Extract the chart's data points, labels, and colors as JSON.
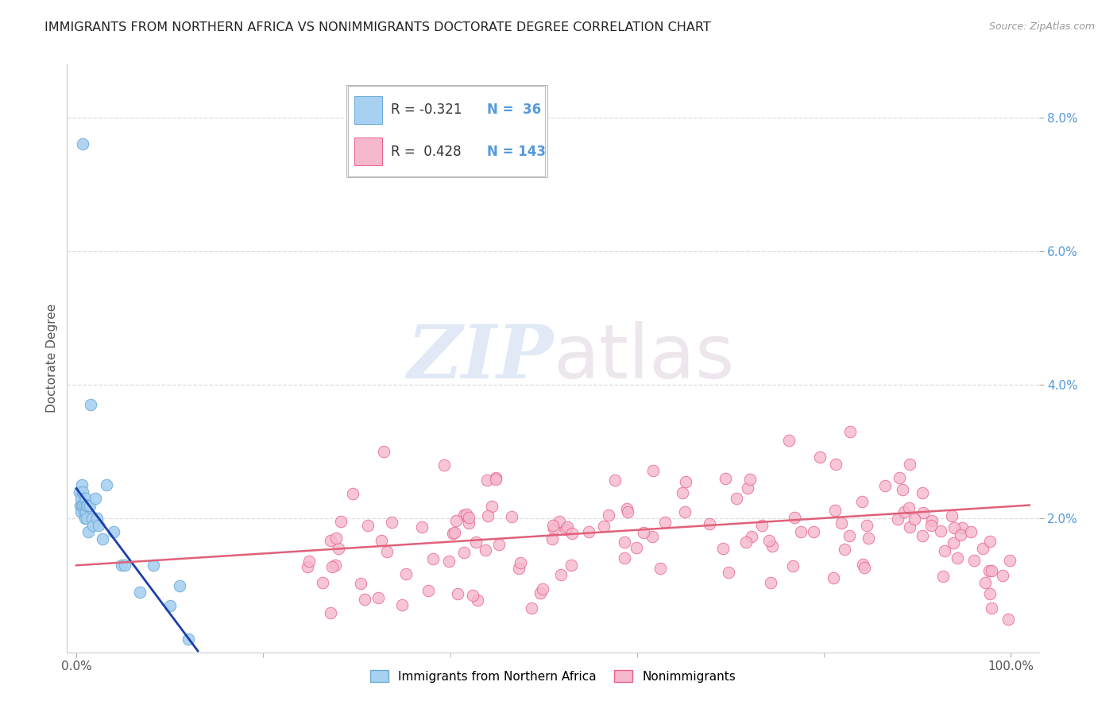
{
  "title": "IMMIGRANTS FROM NORTHERN AFRICA VS NONIMMIGRANTS DOCTORATE DEGREE CORRELATION CHART",
  "source": "Source: ZipAtlas.com",
  "ylabel": "Doctorate Degree",
  "right_yticks": [
    0.02,
    0.04,
    0.06,
    0.08
  ],
  "right_yticklabels": [
    "2.0%",
    "4.0%",
    "6.0%",
    "8.0%"
  ],
  "xticks": [
    0.0,
    1.0
  ],
  "xticklabels": [
    "0.0%",
    "100.0%"
  ],
  "xlim": [
    -0.01,
    1.03
  ],
  "ylim": [
    0.0,
    0.088
  ],
  "blue_color": "#A8D0F0",
  "blue_edge_color": "#6AAAD8",
  "pink_color": "#F5B8CC",
  "pink_edge_color": "#E8608A",
  "blue_line_color": "#1B3FAA",
  "pink_line_color": "#E0607A",
  "legend_R1": "R = -0.321",
  "legend_N1": "N =  36",
  "legend_R2": "R =  0.428",
  "legend_N2": "N = 143",
  "label1": "Immigrants from Northern Africa",
  "label2": "Nonimmigrants",
  "title_fontsize": 11.5,
  "axis_label_fontsize": 11,
  "tick_fontsize": 11,
  "watermark_zip": "ZIP",
  "watermark_atlas": "atlas",
  "grid_color": "#DDDDDD"
}
